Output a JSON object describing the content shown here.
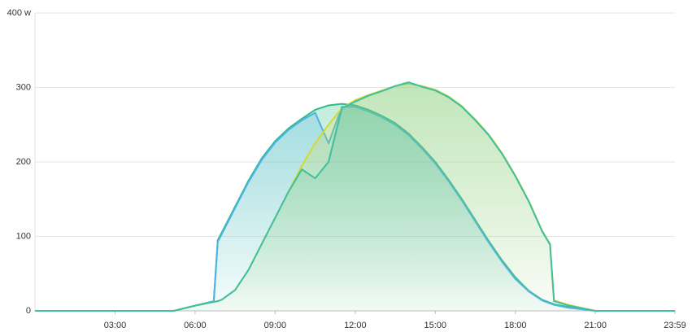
{
  "chart_data": {
    "type": "area-line",
    "x": [
      0,
      5.2,
      6,
      6.7,
      6.85,
      7,
      7.5,
      8,
      8.5,
      9,
      9.5,
      10,
      10.5,
      11,
      11.5,
      12,
      12.5,
      13,
      13.5,
      14,
      14.5,
      15,
      15.5,
      16,
      16.5,
      17,
      17.5,
      18,
      18.5,
      19,
      19.3,
      19.45,
      20,
      21,
      23.98
    ],
    "series": [
      {
        "color": "#2ebd85",
        "values": [
          0,
          0,
          7,
          13,
          95,
          105,
          140,
          175,
          205,
          228,
          245,
          258,
          270,
          276,
          278,
          276,
          270,
          262,
          252,
          238,
          220,
          200,
          176,
          150,
          122,
          94,
          68,
          45,
          27,
          15,
          11,
          9,
          5,
          0,
          0
        ]
      },
      {
        "color": "#4db3e6",
        "values": [
          0,
          0,
          7,
          13,
          93,
          103,
          138,
          173,
          203,
          226,
          243,
          256,
          266,
          225,
          274,
          274,
          268,
          260,
          250,
          236,
          218,
          198,
          174,
          148,
          120,
          92,
          66,
          43,
          26,
          14,
          10,
          8,
          4,
          0,
          0
        ]
      },
      {
        "color": "#d4d932",
        "values": [
          0,
          0,
          7,
          12,
          13,
          15,
          28,
          55,
          90,
          125,
          160,
          195,
          225,
          250,
          272,
          283,
          290,
          296,
          302,
          305,
          302,
          297,
          288,
          275,
          257,
          237,
          212,
          182,
          148,
          108,
          90,
          14,
          8,
          0,
          0
        ]
      },
      {
        "color": "#3ebfa0",
        "values": [
          0,
          0,
          7,
          12,
          13,
          15,
          28,
          55,
          90,
          125,
          160,
          190,
          178,
          200,
          272,
          281,
          289,
          295,
          302,
          307,
          301,
          296,
          287,
          274,
          256,
          236,
          211,
          181,
          147,
          107,
          89,
          13,
          7,
          0,
          0
        ]
      }
    ],
    "xlim": [
      0,
      23.98
    ],
    "xticks": [
      {
        "value": 3,
        "label": "03:00"
      },
      {
        "value": 6,
        "label": "06:00"
      },
      {
        "value": 9,
        "label": "09:00"
      },
      {
        "value": 12,
        "label": "12:00"
      },
      {
        "value": 15,
        "label": "15:00"
      },
      {
        "value": 18,
        "label": "18:00"
      },
      {
        "value": 21,
        "label": "21:00"
      },
      {
        "value": 23.98,
        "label": "23:59"
      }
    ],
    "ylim": [
      0,
      400
    ],
    "yticks": [
      0,
      100,
      200,
      300,
      {
        "value": 400,
        "label": "400 w"
      }
    ],
    "grid": true
  }
}
